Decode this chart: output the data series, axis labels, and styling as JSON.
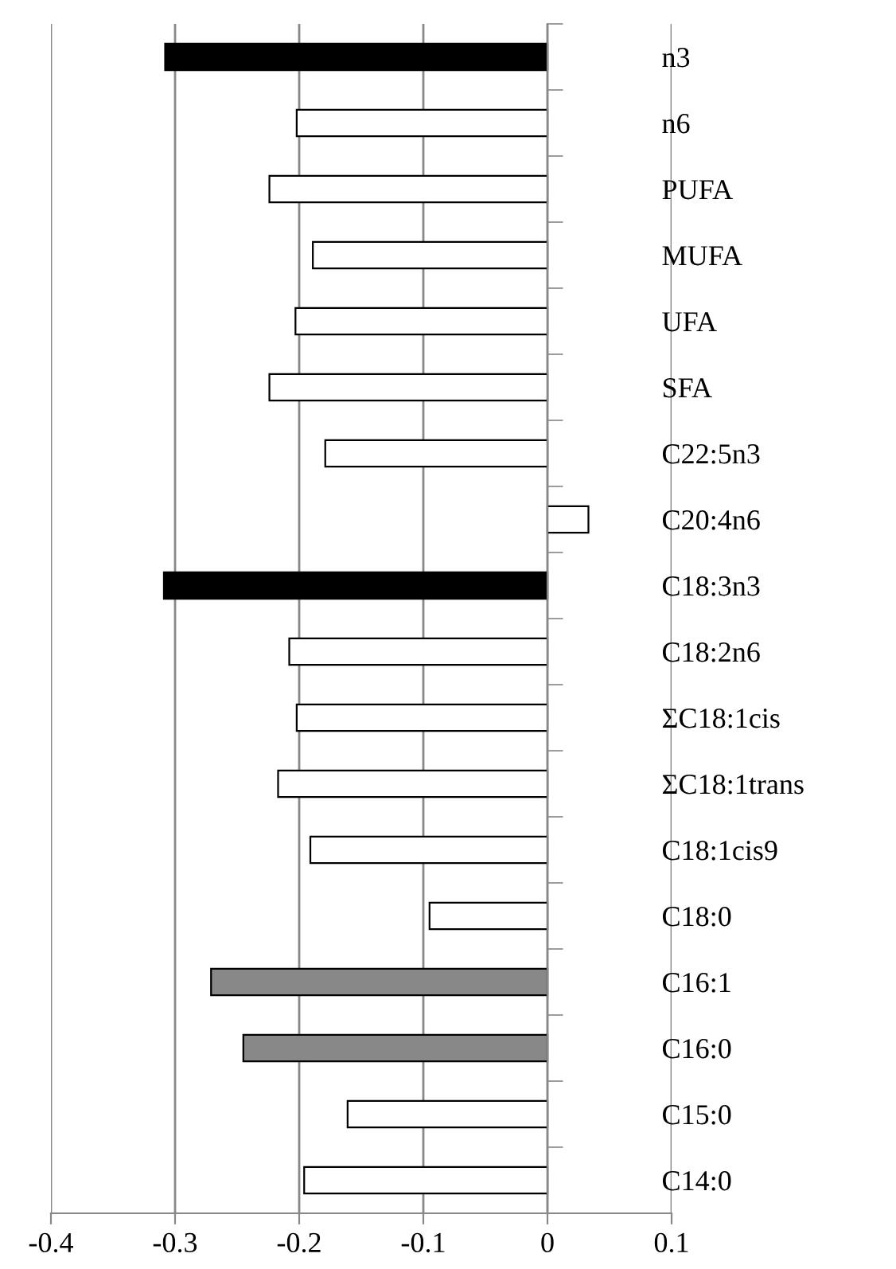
{
  "chart_data": {
    "type": "bar",
    "orientation": "horizontal",
    "categories": [
      "n3",
      "n6",
      "PUFA",
      "MUFA",
      "UFA",
      "SFA",
      "C22:5n3",
      "C20:4n6",
      "C18:3n3",
      "C18:2n6",
      "ΣC18:1cis",
      "ΣC18:1trans",
      "C18:1cis9",
      "C18:0",
      "C16:1",
      "C16:0",
      "C15:0",
      "C14:0"
    ],
    "values": [
      -0.308,
      -0.202,
      -0.224,
      -0.189,
      -0.203,
      -0.224,
      -0.179,
      0.033,
      -0.309,
      -0.208,
      -0.202,
      -0.217,
      -0.191,
      -0.095,
      -0.271,
      -0.245,
      -0.161,
      -0.196
    ],
    "colors": [
      "#000000",
      "#ffffff",
      "#ffffff",
      "#ffffff",
      "#ffffff",
      "#ffffff",
      "#ffffff",
      "#ffffff",
      "#000000",
      "#ffffff",
      "#ffffff",
      "#ffffff",
      "#ffffff",
      "#ffffff",
      "#888888",
      "#888888",
      "#ffffff",
      "#ffffff"
    ],
    "xlim": [
      -0.4,
      0.1
    ],
    "xticks": [
      -0.4,
      -0.3,
      -0.2,
      -0.1,
      0,
      0.1
    ],
    "grid": "x",
    "legend": false
  }
}
